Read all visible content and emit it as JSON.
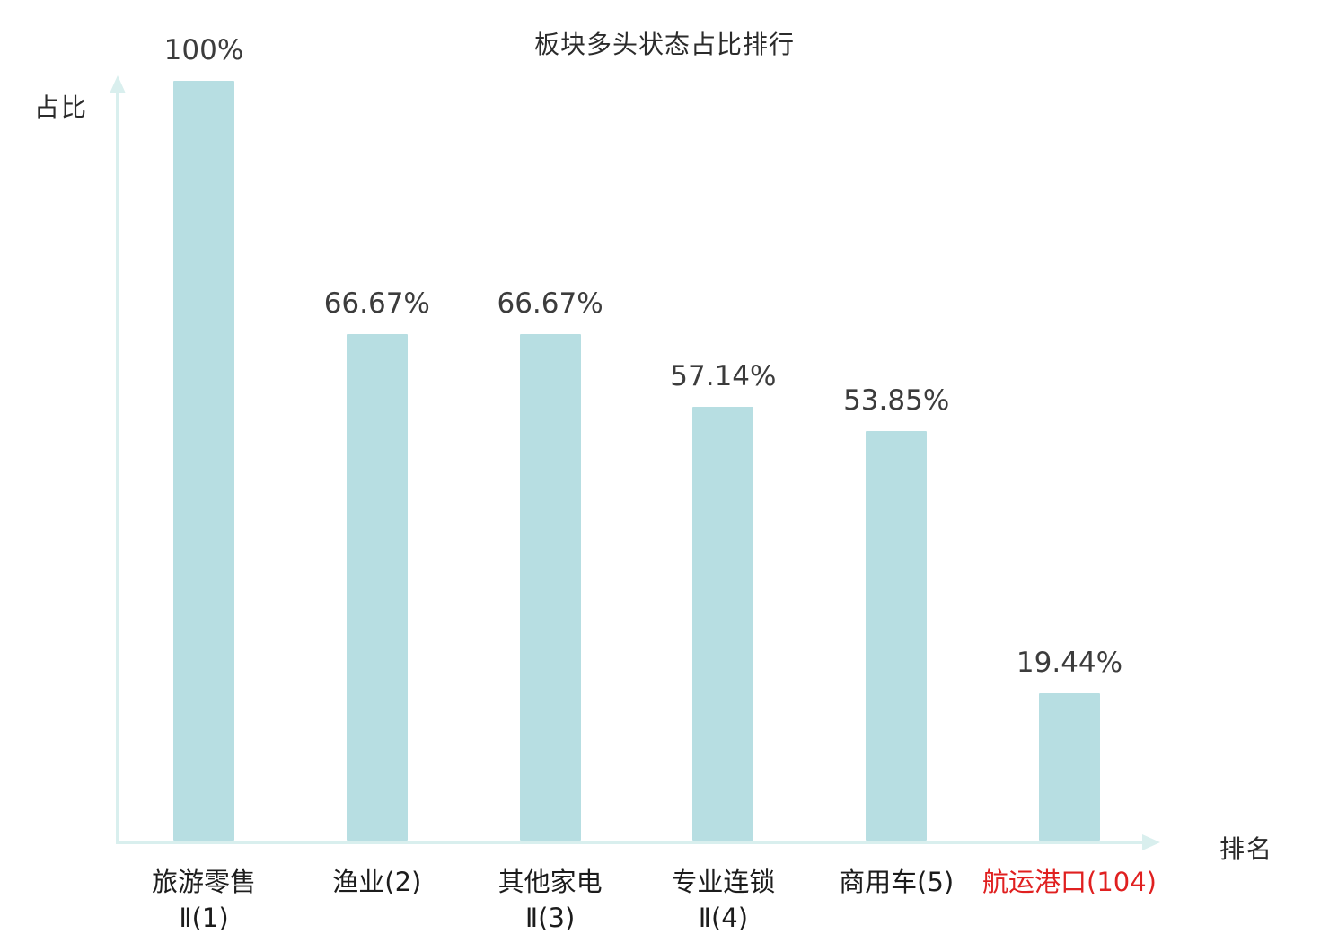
{
  "colors": {
    "bar_fill": "#b7dee2",
    "axis": "#d9efee",
    "value_label": "#3c3c3c",
    "category_label": "#1c1c1c",
    "highlight_label": "#e02020"
  },
  "chart_data": {
    "type": "bar",
    "title": "板块多头状态占比排行",
    "xlabel": "排名",
    "ylabel": "占比",
    "ylim": [
      0,
      100
    ],
    "grid": false,
    "legend": "none",
    "categories": [
      "旅游零售Ⅱ(1)",
      "渔业(2)",
      "其他家电Ⅱ(3)",
      "专业连锁Ⅱ(4)",
      "商用车(5)",
      "航运港口(104)"
    ],
    "values": [
      100,
      66.67,
      66.67,
      57.14,
      53.85,
      19.44
    ],
    "bars": [
      {
        "name_lines": [
          "旅游零售",
          "Ⅱ(1)"
        ],
        "value": 100,
        "label": "100%",
        "highlight": false
      },
      {
        "name_lines": [
          "渔业(2)"
        ],
        "value": 66.67,
        "label": "66.67%",
        "highlight": false
      },
      {
        "name_lines": [
          "其他家电",
          "Ⅱ(3)"
        ],
        "value": 66.67,
        "label": "66.67%",
        "highlight": false
      },
      {
        "name_lines": [
          "专业连锁",
          "Ⅱ(4)"
        ],
        "value": 57.14,
        "label": "57.14%",
        "highlight": false
      },
      {
        "name_lines": [
          "商用车(5)"
        ],
        "value": 53.85,
        "label": "53.85%",
        "highlight": false
      },
      {
        "name_lines": [
          "航运港口(104)"
        ],
        "value": 19.44,
        "label": "19.44%",
        "highlight": true
      }
    ]
  }
}
